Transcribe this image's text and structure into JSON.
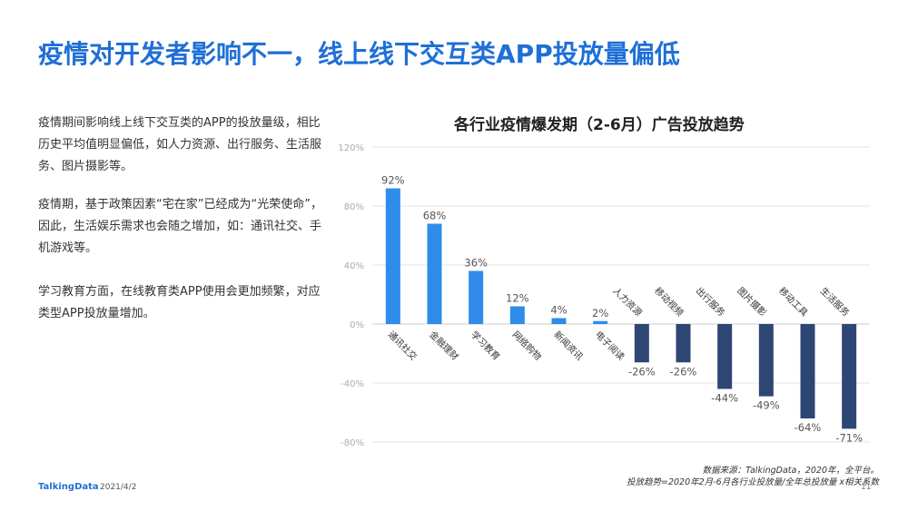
{
  "title": "疫情对开发者影响不一，线上线下交互类APP投放量偏低",
  "paragraphs": [
    "疫情期间影响线上线下交互类的APP的投放量级，相比历史平均值明显偏低，如人力资源、出行服务、生活服务、图片摄影等。",
    "疫情期，基于政策因素“宅在家”已经成为“光荣使命”，因此，生活娱乐需求也会随之增加，如：通讯社交、手机游戏等。",
    "学习教育方面，在线教育类APP使用会更加频繁，对应类型APP投放量增加。"
  ],
  "footer": {
    "source_line1": "数据来源：TalkingData，2020年，全平台。",
    "source_line2": "投放趋势=2020年2月-6月各行业投放量/全年总投放量 x相关系数",
    "logo": "TalkingData",
    "date": "2021/4/2",
    "page": "11"
  },
  "colors": {
    "positive": "#2f8ceb",
    "negative": "#2e4673",
    "title": "#1f6fd6",
    "axis_tick": "#aaaaaa",
    "grid": "#e6e6e6"
  },
  "chart_data": {
    "type": "bar",
    "title": "各行业疫情爆发期（2-6月）广告投放趋势",
    "xlabel": "",
    "ylabel": "",
    "ylim": [
      -80,
      120
    ],
    "yticks": [
      "-80%",
      "-40%",
      "0%",
      "40%",
      "80%",
      "120%"
    ],
    "grid": true,
    "categories": [
      "通讯社交",
      "金融理财",
      "学习教育",
      "网络购物",
      "新闻资讯",
      "电子阅读",
      "人力资源",
      "移动视频",
      "出行服务",
      "图片摄影",
      "移动工具",
      "生活服务"
    ],
    "values": [
      92,
      68,
      36,
      12,
      4,
      2,
      -26,
      -26,
      -44,
      -49,
      -64,
      -71
    ],
    "value_labels": [
      "92%",
      "68%",
      "36%",
      "12%",
      "4%",
      "2%",
      "-26%",
      "-26%",
      "-44%",
      "-49%",
      "-64%",
      "-71%"
    ]
  }
}
